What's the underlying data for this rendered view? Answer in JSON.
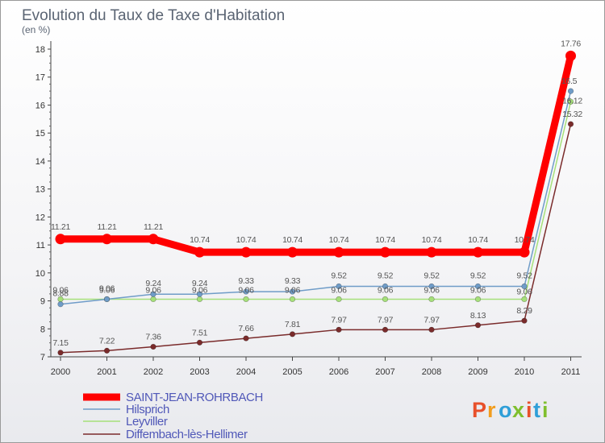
{
  "chart_data": {
    "type": "line",
    "title": "Evolution du Taux de Taxe d'Habitation",
    "subtitle": "(en %)",
    "x": [
      "2000",
      "2001",
      "2002",
      "2003",
      "2004",
      "2005",
      "2006",
      "2007",
      "2008",
      "2009",
      "2010",
      "2011"
    ],
    "ylim": [
      7,
      18
    ],
    "yticks": [
      "7",
      "8",
      "9",
      "10",
      "11",
      "12",
      "13",
      "14",
      "15",
      "16",
      "17",
      "18"
    ],
    "grid": false,
    "legend_position": "bottom-left",
    "series": [
      {
        "name": "SAINT-JEAN-ROHRBACH",
        "color": "#ff0000",
        "values": [
          11.21,
          11.21,
          11.21,
          10.74,
          10.74,
          10.74,
          10.74,
          10.74,
          10.74,
          10.74,
          10.74,
          17.76
        ],
        "labels": [
          "11.21",
          "11.21",
          "11.21",
          "10.74",
          "10.74",
          "10.74",
          "10.74",
          "10.74",
          "10.74",
          "10.74",
          "10.74",
          "17.76"
        ]
      },
      {
        "name": "Hilsprich",
        "color": "#6f9cc8",
        "values": [
          8.88,
          9.06,
          9.24,
          9.24,
          9.33,
          9.33,
          9.52,
          9.52,
          9.52,
          9.52,
          9.52,
          16.5
        ],
        "labels": [
          "8.88",
          "9.06",
          "9.24",
          "9.24",
          "9.33",
          "9.33",
          "9.52",
          "9.52",
          "9.52",
          "9.52",
          "9.52",
          "16.5"
        ]
      },
      {
        "name": "Leyviller",
        "color": "#a6e07a",
        "values": [
          9.06,
          9.06,
          9.06,
          9.06,
          9.06,
          9.06,
          9.06,
          9.06,
          9.06,
          9.06,
          9.06,
          16.12
        ],
        "labels": [
          "9.06",
          "9.06",
          "9.06",
          "9.06",
          "9.06",
          "9.06",
          "9.06",
          "9.06",
          "9.06",
          "9.06",
          "9.06",
          "16.12"
        ]
      },
      {
        "name": "Diffembach-lès-Hellimer",
        "color": "#7a2b2b",
        "values": [
          7.15,
          7.22,
          7.36,
          7.51,
          7.66,
          7.81,
          7.97,
          7.97,
          7.97,
          8.13,
          8.29,
          15.32
        ],
        "labels": [
          "7.15",
          "7.22",
          "7.36",
          "7.51",
          "7.66",
          "7.81",
          "7.97",
          "7.97",
          "7.97",
          "8.13",
          "8.29",
          "15.32"
        ]
      }
    ]
  },
  "logo": {
    "text": "Proxiti",
    "colors": [
      "#e8502b",
      "#f29d1e",
      "#2f9fd8",
      "#7fbf2e",
      "#e8502b",
      "#2f9fd8",
      "#7fbf2e"
    ]
  }
}
